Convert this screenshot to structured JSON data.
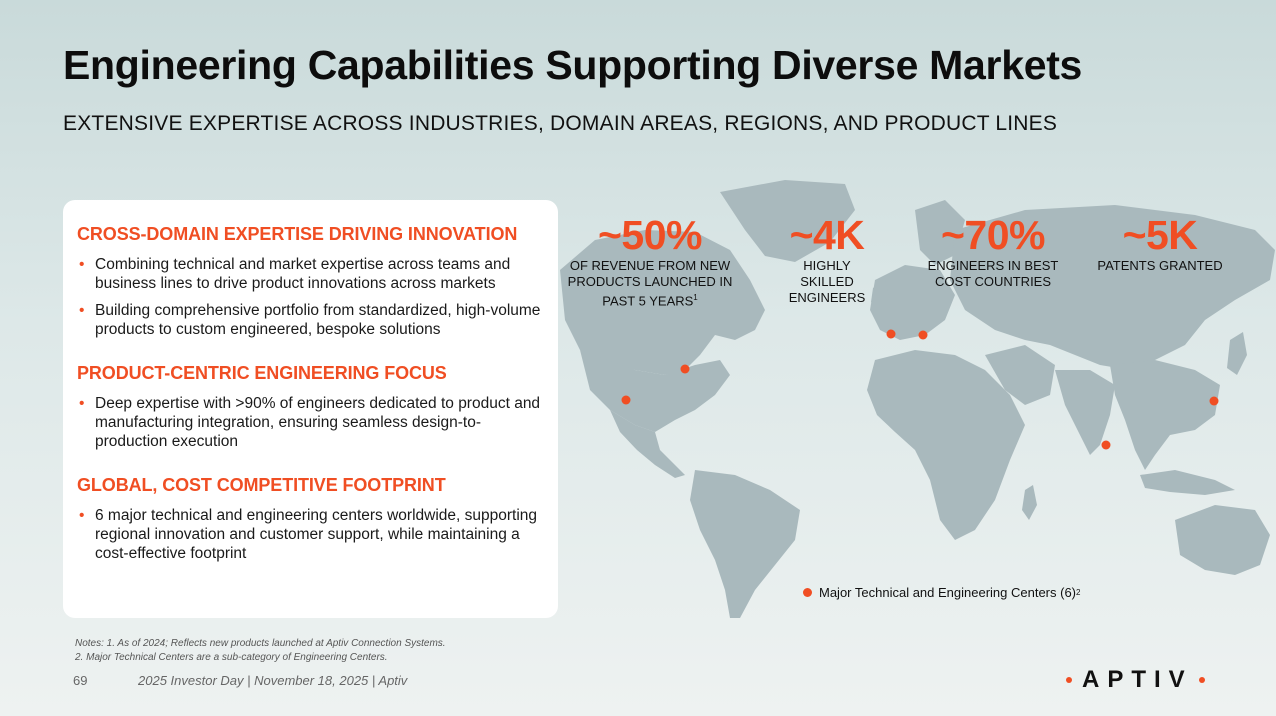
{
  "title": "Engineering Capabilities Supporting Diverse Markets",
  "subtitle": "EXTENSIVE EXPERTISE ACROSS INDUSTRIES, DOMAIN AREAS, REGIONS, AND PRODUCT LINES",
  "sections": [
    {
      "heading": "CROSS-DOMAIN EXPERTISE DRIVING INNOVATION",
      "bullets": [
        "Combining technical and market expertise across teams and business lines to drive product innovations across markets",
        "Building comprehensive portfolio from standardized, high-volume products to custom engineered, bespoke solutions"
      ]
    },
    {
      "heading": "PRODUCT-CENTRIC ENGINEERING FOCUS",
      "bullets": [
        "Deep expertise with >90% of engineers dedicated to product and manufacturing integration, ensuring seamless design-to-production execution"
      ]
    },
    {
      "heading": "GLOBAL, COST COMPETITIVE FOOTPRINT",
      "bullets": [
        "6 major technical and engineering centers worldwide, supporting regional innovation and customer support, while maintaining a cost-effective footprint"
      ]
    }
  ],
  "stats": [
    {
      "value": "~50%",
      "label": "OF REVENUE FROM NEW PRODUCTS LAUNCHED IN PAST 5 YEARS",
      "sup": "1"
    },
    {
      "value": "~4K",
      "label": "HIGHLY SKILLED ENGINEERS",
      "sup": ""
    },
    {
      "value": "~70%",
      "label": "ENGINEERS IN BEST COST COUNTRIES",
      "sup": ""
    },
    {
      "value": "~5K",
      "label": "PATENTS GRANTED",
      "sup": ""
    }
  ],
  "legend": {
    "label": "Major Technical and Engineering Centers (6)",
    "sup": "2"
  },
  "notes": [
    "Notes: 1. As of 2024; Reflects new products launched at Aptiv Connection Systems.",
    "2. Major Technical Centers are a sub-category of Engineering Centers."
  ],
  "page_number": "69",
  "footer": "2025 Investor Day | November 18, 2025 | Aptiv",
  "logo_text": "APTIV",
  "colors": {
    "accent": "#f04e23",
    "map": "#a9b9bd"
  }
}
